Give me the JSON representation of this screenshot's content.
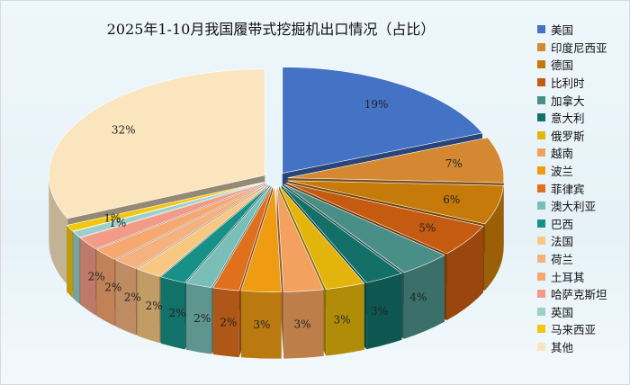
{
  "chart_data": {
    "type": "pie",
    "title": "2025年1-10月我国履带式挖掘机出口情况（占比）",
    "categories": [
      "美国",
      "印度尼西亚",
      "德国",
      "比利时",
      "加拿大",
      "意大利",
      "俄罗斯",
      "越南",
      "波兰",
      "菲律宾",
      "澳大利亚",
      "巴西",
      "法国",
      "荷兰",
      "土耳其",
      "哈萨克斯坦",
      "英国",
      "马来西亚",
      "其他"
    ],
    "values": [
      19,
      7,
      6,
      5,
      4,
      3,
      3,
      3,
      3,
      2,
      2,
      2,
      2,
      2,
      2,
      2,
      1,
      1,
      32
    ],
    "labels": [
      "19%",
      "7%",
      "6%",
      "5%",
      "4%",
      "3%",
      "3%",
      "3%",
      "3%",
      "2%",
      "2%",
      "2%",
      "2%",
      "2%",
      "2%",
      "2%",
      "1%",
      "1%",
      "32%"
    ],
    "colors": [
      "#4472c4",
      "#d38831",
      "#c57a09",
      "#c55a11",
      "#4a8e88",
      "#127068",
      "#e3b40b",
      "#f2a15e",
      "#ef9c13",
      "#e0701e",
      "#7abfb7",
      "#179187",
      "#f8c882",
      "#f5b27f",
      "#f7a770",
      "#f29c87",
      "#9dcfc9",
      "#f2c70e",
      "#fae5bf"
    ],
    "legend_position": "right",
    "style": "3d-exploded"
  }
}
